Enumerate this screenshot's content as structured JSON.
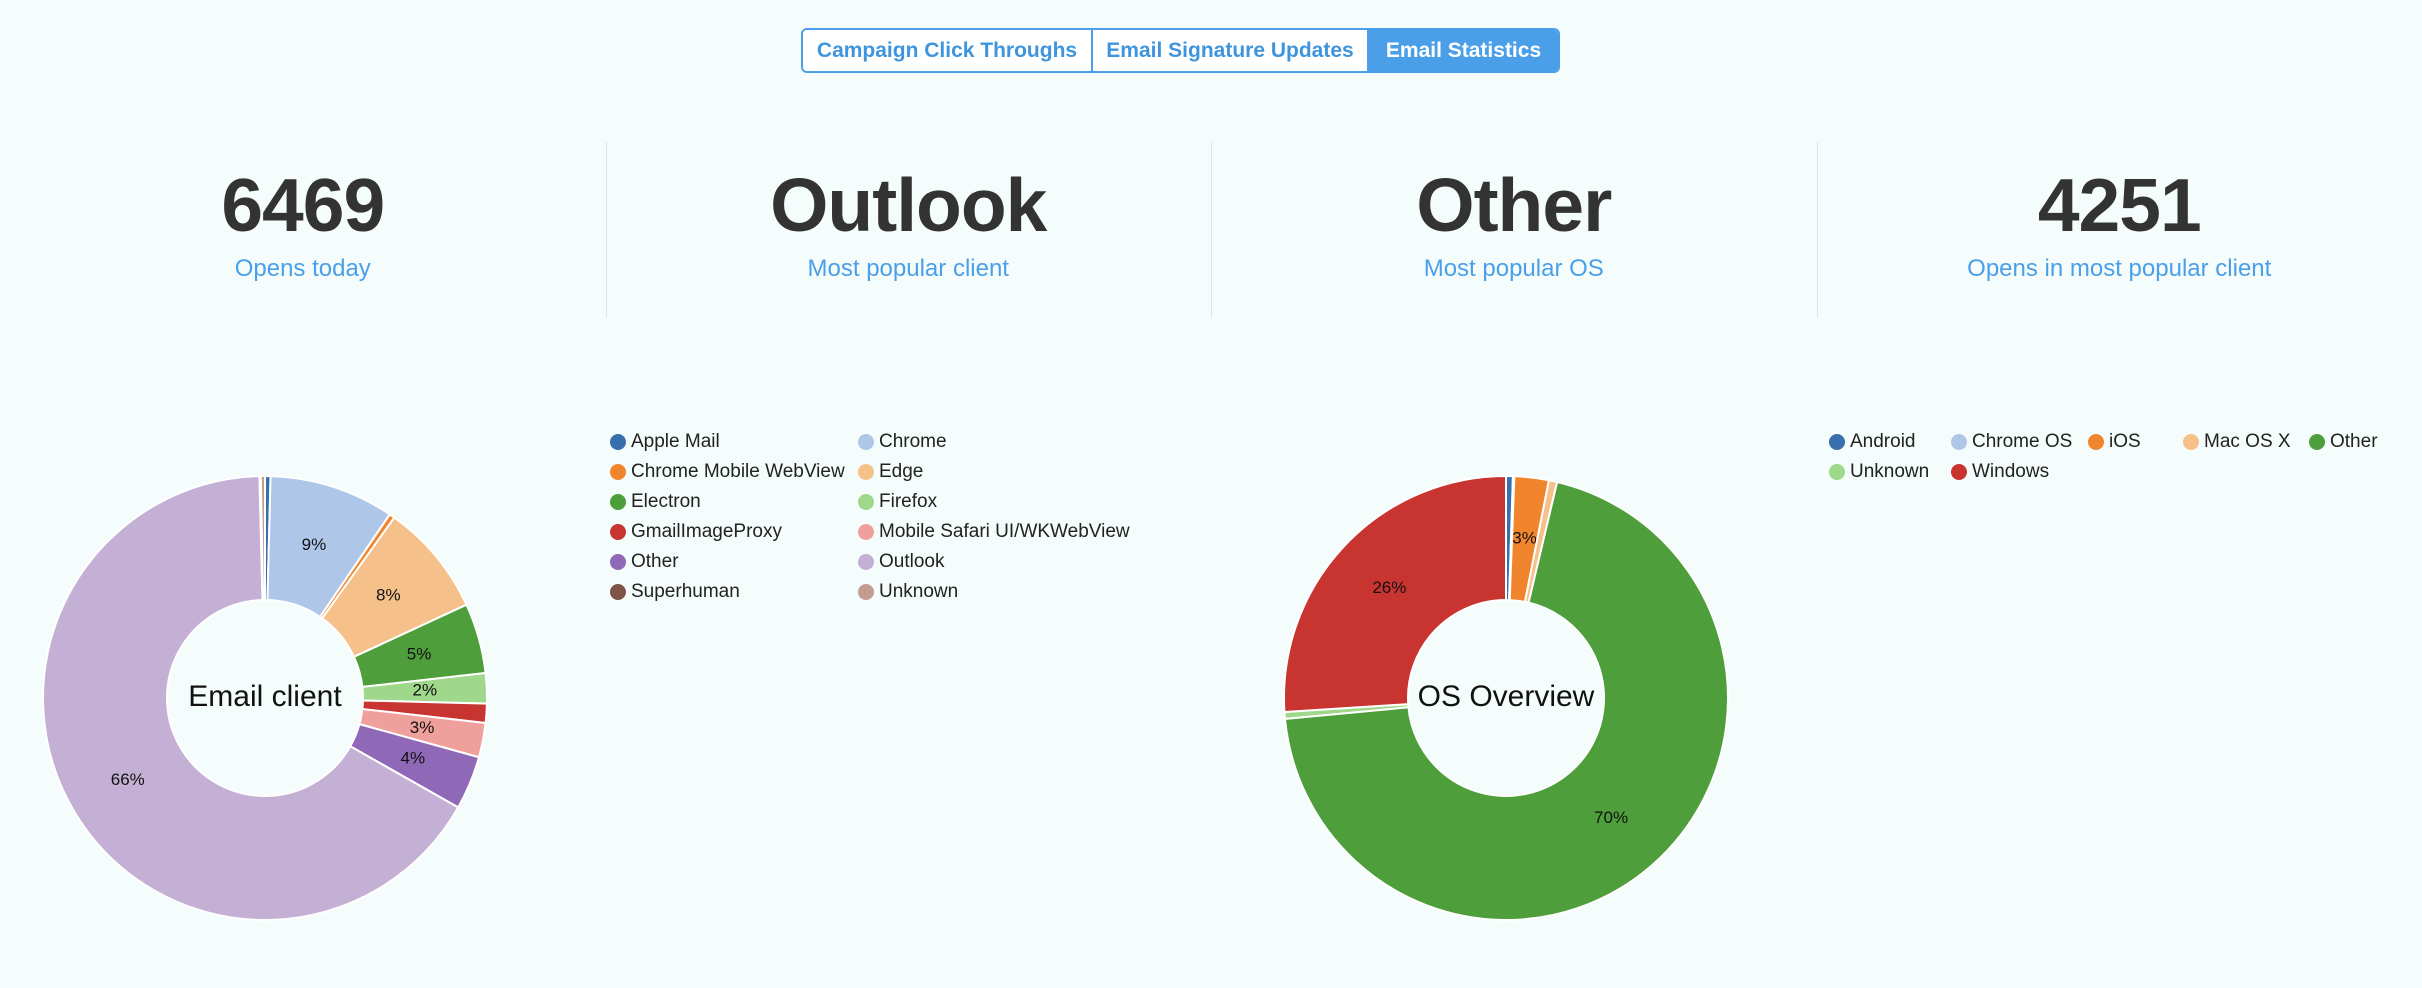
{
  "tabs": [
    {
      "label": "Campaign Click Throughs",
      "active": false
    },
    {
      "label": "Email Signature Updates",
      "active": false
    },
    {
      "label": "Email Statistics",
      "active": true
    }
  ],
  "stats": [
    {
      "value": "6469",
      "label": "Opens today"
    },
    {
      "value": "Outlook",
      "label": "Most popular client"
    },
    {
      "value": "Other",
      "label": "Most popular OS"
    },
    {
      "value": "4251",
      "label": "Opens in most popular client"
    }
  ],
  "chart_data": [
    {
      "type": "pie",
      "title": "Email client",
      "categories": [
        "Apple Mail",
        "Chrome",
        "Chrome Mobile WebView",
        "Edge",
        "Electron",
        "Firefox",
        "GmailImageProxy",
        "Mobile Safari UI/WKWebView",
        "Other",
        "Outlook",
        "Superhuman",
        "Unknown"
      ],
      "values": [
        0.4,
        9.1,
        0.4,
        8.2,
        5.1,
        2.2,
        1.4,
        2.5,
        3.9,
        66.4,
        0.1,
        0.3
      ],
      "slice_order": [
        "Apple Mail",
        "Chrome",
        "Chrome Mobile WebView",
        "Edge",
        "Electron",
        "Firefox",
        "GmailImageProxy",
        "Mobile Safari UI/WKWebView",
        "Other",
        "Outlook",
        "Superhuman",
        "Unknown"
      ],
      "data_labels": {
        "Chrome": "9%",
        "Edge": "8%",
        "Electron": "5%",
        "Firefox": "2%",
        "Mobile Safari UI/WKWebView": "3%",
        "Other": "4%",
        "Outlook": "66%"
      },
      "colors": [
        "#3a6fad",
        "#aec7e8",
        "#f0852d",
        "#f6c08a",
        "#4f9e3c",
        "#9fd88a",
        "#c8342f",
        "#f0a09c",
        "#9068b8",
        "#c4b0d4",
        "#7f5348",
        "#c49c94"
      ],
      "legend": "right"
    },
    {
      "type": "pie",
      "title": "OS Overview",
      "categories": [
        "Android",
        "Chrome OS",
        "iOS",
        "Mac OS X",
        "Other",
        "Unknown",
        "Windows"
      ],
      "values": [
        0.5,
        0.1,
        2.5,
        0.6,
        69.8,
        0.5,
        26.0
      ],
      "data_labels": {
        "iOS": "3%",
        "Other": "70%",
        "Windows": "26%"
      },
      "colors": [
        "#3a6fad",
        "#aec7e8",
        "#f0852d",
        "#f6c08a",
        "#4f9e3c",
        "#9fd88a",
        "#c8342f"
      ],
      "legend": "right"
    }
  ]
}
